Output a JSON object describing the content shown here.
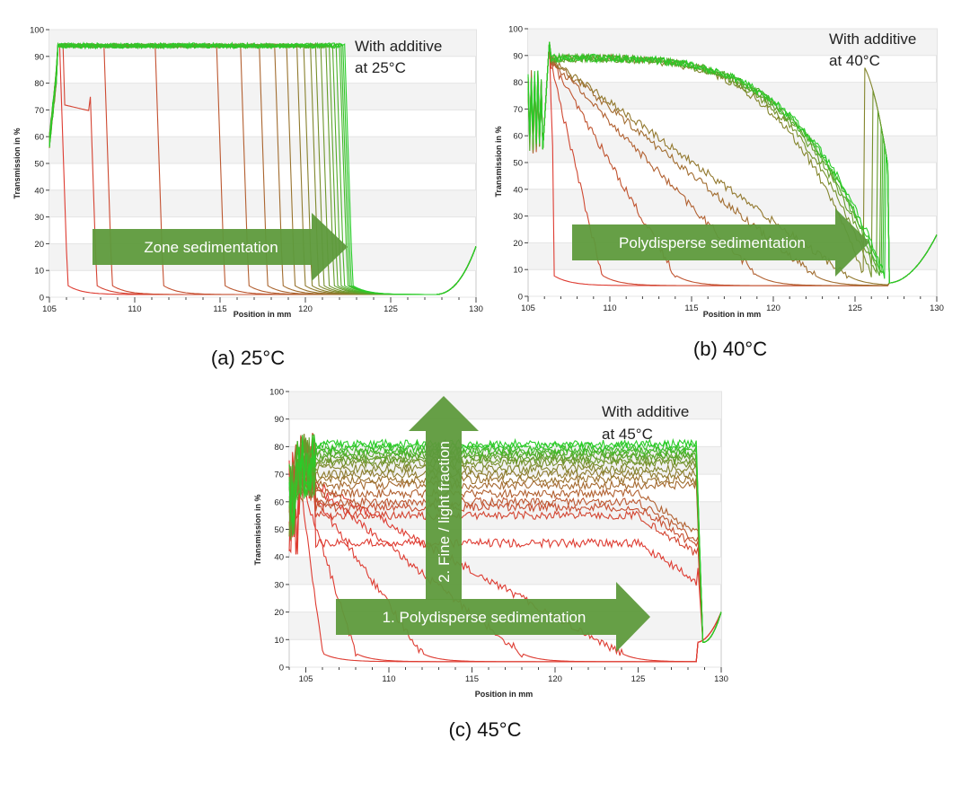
{
  "chart_data": [
    {
      "id": "a",
      "type": "line",
      "caption": "(a) 25°C",
      "annotation_lines": [
        "With additive",
        "at 25°C"
      ],
      "arrow_label": "Zone sedimentation",
      "xlabel": "Position in mm",
      "ylabel": "Transmission in %",
      "xlim": [
        105,
        130
      ],
      "ylim": [
        0,
        100
      ],
      "xticks": [
        105,
        110,
        115,
        120,
        125,
        130
      ],
      "yticks": [
        0,
        10,
        20,
        30,
        40,
        50,
        60,
        70,
        80,
        90,
        100
      ],
      "plateau": 94,
      "fronts": [
        105.6,
        107.3,
        108.2,
        111.2,
        114.8,
        116.2,
        117.3,
        118.2,
        118.9,
        119.5,
        119.9,
        120.3,
        120.6,
        120.9,
        121.2,
        121.4,
        121.6,
        121.8,
        122.0,
        122.1,
        122.2,
        122.3
      ],
      "baseline_min": 1,
      "end_value": 20
    },
    {
      "id": "b",
      "type": "line",
      "caption": "(b) 40°C",
      "annotation_lines": [
        "With additive",
        "at 40°C"
      ],
      "arrow_label": "Polydisperse sedimentation",
      "xlabel": "Position in mm",
      "ylabel": "Transmission in %",
      "xlim": [
        105,
        130
      ],
      "ylim": [
        0,
        100
      ],
      "xticks": [
        105,
        110,
        115,
        120,
        125,
        130
      ],
      "yticks": [
        0,
        10,
        20,
        30,
        40,
        50,
        60,
        70,
        80,
        90,
        100
      ],
      "plateau": 89,
      "decay_end": [
        106.5,
        109.5,
        114,
        119,
        122.5,
        124.5,
        125.5,
        126,
        126.3,
        126.5,
        126.6,
        126.7,
        126.8
      ],
      "step_position": 127,
      "baseline_min": 5,
      "end_value": 23
    },
    {
      "id": "c",
      "type": "line",
      "caption": "(c) 45°C",
      "annotation_lines": [
        "With additive",
        "at 45°C"
      ],
      "arrow_label": "1. Polydisperse sedimentation",
      "vertical_arrow_label": "2. Fine / light fraction",
      "xlabel": "Position in mm",
      "ylabel": "Transmission in %",
      "xlim": [
        104,
        130
      ],
      "ylim": [
        0,
        100
      ],
      "xticks": [
        105,
        110,
        115,
        120,
        125,
        130
      ],
      "yticks": [
        0,
        10,
        20,
        30,
        40,
        50,
        60,
        70,
        80,
        90,
        100
      ],
      "plateau_levels": [
        45,
        55,
        58,
        60,
        63,
        66,
        68,
        70,
        72,
        74,
        75,
        76,
        77,
        78,
        79,
        80,
        81
      ],
      "step_position": 128.5,
      "baseline_min": 9,
      "end_value": 20
    }
  ]
}
